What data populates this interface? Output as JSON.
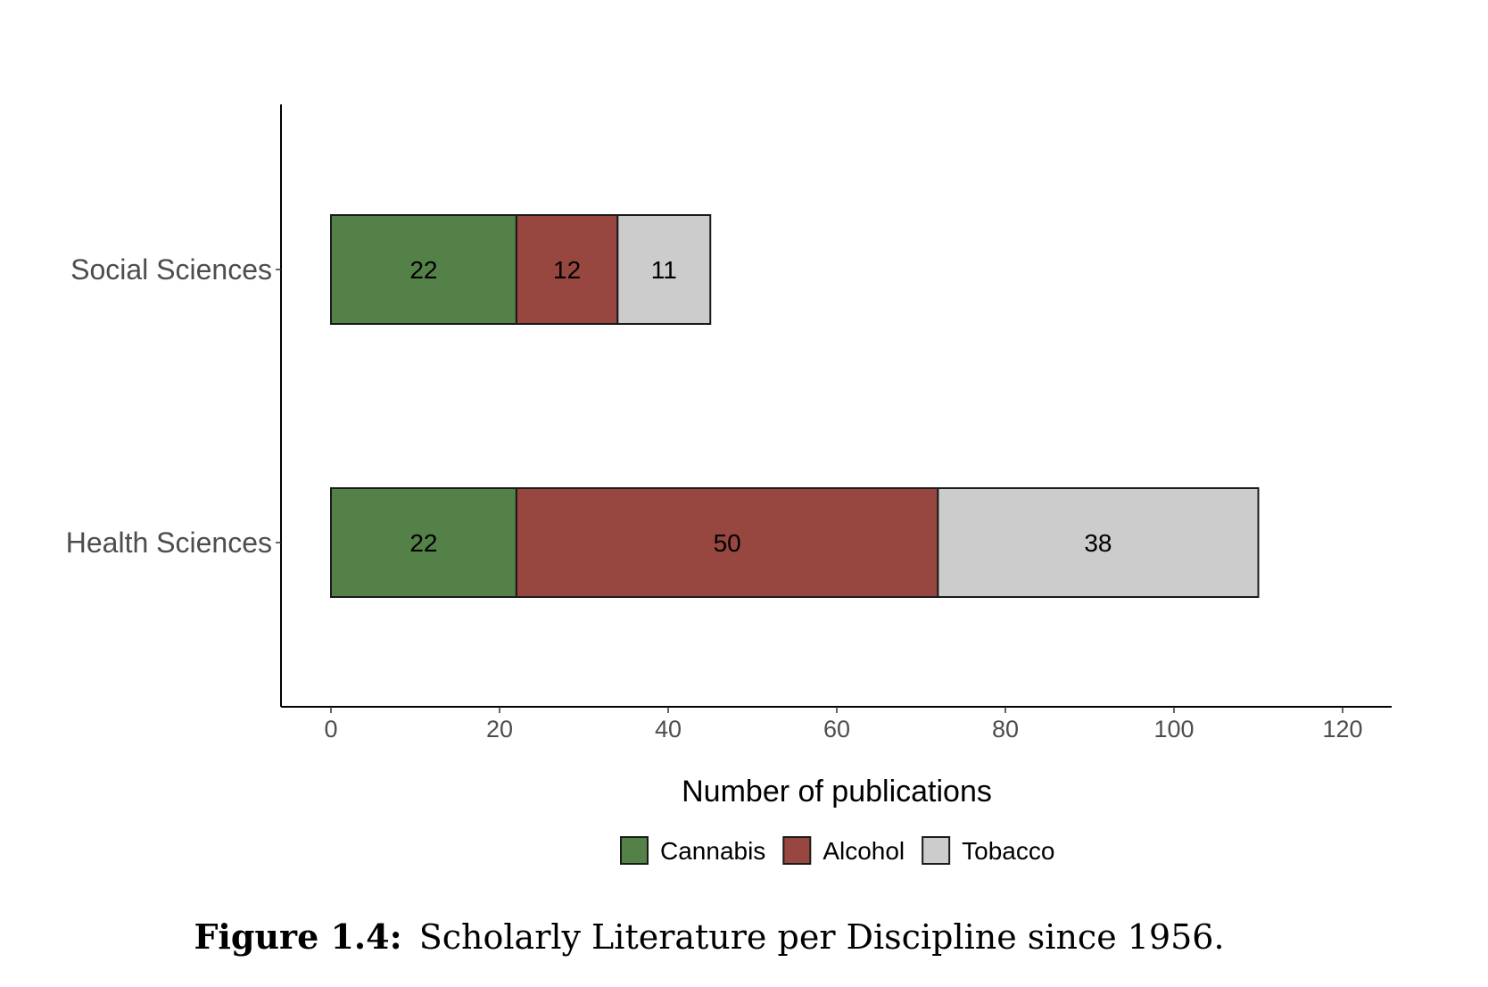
{
  "chart_data": {
    "type": "bar",
    "orientation": "horizontal",
    "stacked": true,
    "categories": [
      "Social Sciences",
      "Health Sciences"
    ],
    "series": [
      {
        "name": "Cannabis",
        "color": "#548147",
        "values": [
          22,
          22
        ]
      },
      {
        "name": "Alcohol",
        "color": "#974640",
        "values": [
          12,
          50
        ]
      },
      {
        "name": "Tobacco",
        "color": "#cccccc",
        "values": [
          11,
          38
        ]
      }
    ],
    "xlabel": "Number of publications",
    "ylabel": "",
    "xlim": [
      0,
      120
    ],
    "xticks": [
      0,
      20,
      40,
      60,
      80,
      100,
      120
    ],
    "grid": false,
    "legend_position": "bottom"
  },
  "caption": {
    "label": "Figure 1.4:",
    "text": "Scholarly Literature per Discipline since 1956."
  }
}
